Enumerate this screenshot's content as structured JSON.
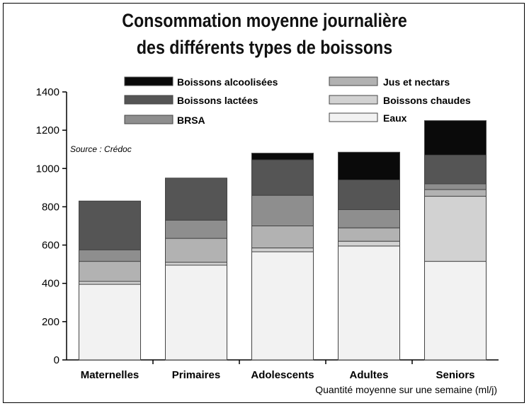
{
  "chart_data": {
    "type": "bar",
    "stacked": true,
    "title_lines": [
      "Consommation moyenne journalière",
      "des différents types de boissons"
    ],
    "source": "Source : Crédoc",
    "xlabel": "Quantité moyenne sur une semaine (ml/j)",
    "ylabel": "",
    "ylim": [
      0,
      1400
    ],
    "yticks": [
      0,
      200,
      400,
      600,
      800,
      1000,
      1200,
      1400
    ],
    "categories": [
      "Maternelles",
      "Primaires",
      "Adolescents",
      "Adultes",
      "Seniors"
    ],
    "legend_placement": "top",
    "series": [
      {
        "name": "Eaux",
        "color": "#f2f2f2",
        "values": [
          395,
          495,
          565,
          595,
          515
        ]
      },
      {
        "name": "Boissons chaudes",
        "color": "#d2d2d2",
        "values": [
          15,
          15,
          20,
          25,
          340
        ]
      },
      {
        "name": "Jus et nectars",
        "color": "#b2b2b2",
        "values": [
          105,
          125,
          115,
          70,
          35
        ]
      },
      {
        "name": "BRSA",
        "color": "#8e8e8e",
        "values": [
          60,
          95,
          160,
          95,
          30
        ]
      },
      {
        "name": "Boissons lactées",
        "color": "#555555",
        "values": [
          255,
          220,
          185,
          155,
          150
        ]
      },
      {
        "name": "Boissons alcoolisées",
        "color": "#0a0a0a",
        "values": [
          0,
          0,
          35,
          145,
          180
        ]
      }
    ],
    "legend_order": [
      "Boissons alcoolisées",
      "Jus et nectars",
      "Boissons lactées",
      "Boissons chaudes",
      "BRSA",
      "Eaux"
    ],
    "grid": false
  }
}
